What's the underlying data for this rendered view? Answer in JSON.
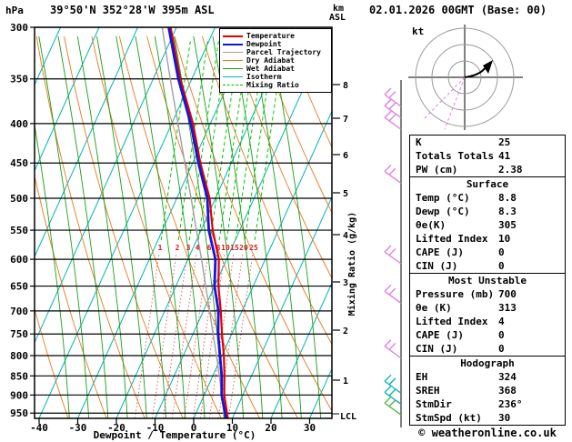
{
  "header": {
    "pressure_unit": "hPa",
    "station": "39°50'N 352°28'W 395m ASL",
    "km": "km",
    "asl": "ASL",
    "datetime": "02.01.2026 00GMT (Base: 00)"
  },
  "legend": [
    {
      "label": "Temperature",
      "color": "#e00000",
      "thick": true,
      "dash": false
    },
    {
      "label": "Dewpoint",
      "color": "#1414dc",
      "thick": true,
      "dash": false
    },
    {
      "label": "Parcel Trajectory",
      "color": "#a0a0a0",
      "thick": false,
      "dash": false
    },
    {
      "label": "Dry Adiabat",
      "color": "#e87820",
      "thick": false,
      "dash": false
    },
    {
      "label": "Wet Adiabat",
      "color": "#18a018",
      "thick": false,
      "dash": false
    },
    {
      "label": "Isotherm",
      "color": "#00b4b4",
      "thick": false,
      "dash": false
    },
    {
      "label": "Mixing Ratio",
      "color": "#00c800",
      "thick": false,
      "dash": true
    }
  ],
  "axes": {
    "mixing_label": "Mixing Ratio (g/kg)",
    "lcl": "LCL"
  },
  "hodograph": {
    "unit": "kt"
  },
  "tables": {
    "sections": [
      {
        "title": "",
        "rows": [
          [
            "K",
            "25"
          ],
          [
            "Totals Totals",
            "41"
          ],
          [
            "PW (cm)",
            "2.38"
          ]
        ]
      },
      {
        "title": "Surface",
        "rows": [
          [
            "Temp (°C)",
            "8.8"
          ],
          [
            "Dewp (°C)",
            "8.3"
          ],
          [
            "θe(K)",
            "305"
          ],
          [
            "Lifted Index",
            "10"
          ],
          [
            "CAPE (J)",
            "0"
          ],
          [
            "CIN (J)",
            "0"
          ]
        ]
      },
      {
        "title": "Most Unstable",
        "rows": [
          [
            "Pressure (mb)",
            "700"
          ],
          [
            "θe (K)",
            "313"
          ],
          [
            "Lifted Index",
            "4"
          ],
          [
            "CAPE (J)",
            "0"
          ],
          [
            "CIN (J)",
            "0"
          ]
        ]
      },
      {
        "title": "Hodograph",
        "rows": [
          [
            "EH",
            "324"
          ],
          [
            "SREH",
            "368"
          ],
          [
            "StmDir",
            "236°"
          ],
          [
            "StmSpd (kt)",
            "30"
          ]
        ]
      }
    ]
  },
  "footer": "© weatheronline.co.uk",
  "chart_data": {
    "type": "line",
    "subtype": "skewt-logp-sounding",
    "title": "39°50'N 352°28'W 395m ASL  02.01.2026 00GMT (Base: 00)",
    "pressure_hpa": [
      965,
      950,
      900,
      850,
      800,
      750,
      700,
      650,
      600,
      550,
      500,
      450,
      400,
      350,
      300
    ],
    "series": [
      {
        "name": "Temperature",
        "color": "#e00000",
        "values_c": [
          8.8,
          8.0,
          5.2,
          3.0,
          0.5,
          -2.5,
          -5.5,
          -9.0,
          -12.0,
          -17.0,
          -21.5,
          -28.0,
          -34.5,
          -43.0,
          -51.5
        ]
      },
      {
        "name": "Dewpoint",
        "color": "#1414dc",
        "values_c": [
          8.3,
          7.5,
          4.5,
          2.3,
          -0.5,
          -3.5,
          -6.1,
          -10.0,
          -12.9,
          -18.0,
          -22.1,
          -28.5,
          -35.1,
          -43.5,
          -52.0
        ]
      },
      {
        "name": "Parcel Trajectory",
        "color": "#a0a0a0",
        "values_c": [
          8.8,
          7.2,
          4.6,
          1.7,
          -1.4,
          -4.8,
          -8.4,
          -12.3,
          -16.5,
          -21.2,
          -26.3,
          -32.0,
          -38.4,
          -45.6,
          -53.7
        ]
      }
    ],
    "x_axis": {
      "label": "Dewpoint / Temperature (°C)",
      "ticks": [
        -40,
        -30,
        -20,
        -10,
        0,
        10,
        20,
        30
      ]
    },
    "y_axis": {
      "label": "hPa",
      "ticks": [
        300,
        350,
        400,
        450,
        500,
        550,
        600,
        650,
        700,
        750,
        800,
        850,
        900,
        950
      ],
      "scale": "log",
      "range": [
        300,
        965
      ]
    },
    "km_axis": {
      "label": "km ASL",
      "ticks": [
        8,
        7,
        6,
        5,
        4,
        3,
        2,
        1
      ]
    },
    "mixing_ratio_lines_g_kg": [
      1,
      2,
      3,
      4,
      6,
      8,
      10,
      15,
      20,
      25
    ],
    "wind_barbs": [
      {
        "p": 380,
        "color": "#e07ae0"
      },
      {
        "p": 393,
        "color": "#e07ae0"
      },
      {
        "p": 407,
        "color": "#e07ae0"
      },
      {
        "p": 478,
        "color": "#e07ae0"
      },
      {
        "p": 608,
        "color": "#e07ae0"
      },
      {
        "p": 684,
        "color": "#e07ae0"
      },
      {
        "p": 806,
        "color": "#e07ae0"
      },
      {
        "p": 895,
        "color": "#00b4b4"
      },
      {
        "p": 925,
        "color": "#00b4b4"
      },
      {
        "p": 955,
        "color": "#50b450"
      }
    ],
    "grid": true,
    "legend_position": "top-right-inside"
  }
}
